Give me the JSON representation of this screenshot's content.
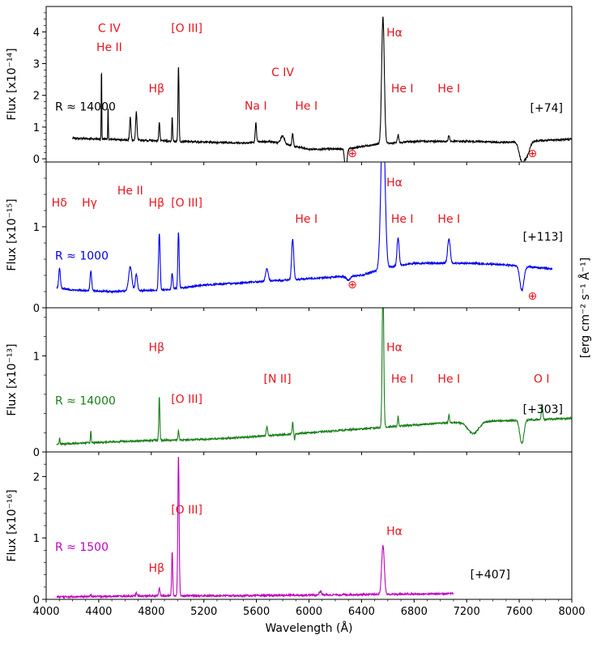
{
  "chart_data": {
    "type": "line",
    "xlabel": "Wavelength (Å)",
    "xlim": [
      4000,
      8000
    ],
    "xticks": [
      4000,
      4400,
      4800,
      5200,
      5600,
      6000,
      6400,
      6800,
      7200,
      7600,
      8000
    ],
    "ylabel_right": "[erg cm⁻² s⁻¹ Å⁻¹]",
    "annotation_color": "#e8141e",
    "panels": [
      {
        "ylabel": "Flux [x10⁻¹⁴]",
        "ylim": [
          -0.1,
          4.8
        ],
        "yticks": [
          0,
          1,
          2,
          3,
          4
        ],
        "color": "#000000",
        "resolution_label": "R ≈ 14000",
        "epoch_label": "[+74]",
        "continuum": [
          [
            4200,
            0.65
          ],
          [
            4600,
            0.6
          ],
          [
            5000,
            0.55
          ],
          [
            5500,
            0.5
          ],
          [
            5700,
            0.55
          ],
          [
            6000,
            0.3
          ],
          [
            6300,
            0.32
          ],
          [
            6500,
            0.45
          ],
          [
            6800,
            0.55
          ],
          [
            7200,
            0.55
          ],
          [
            7500,
            0.52
          ],
          [
            7800,
            0.58
          ],
          [
            8000,
            0.62
          ]
        ],
        "features": [
          [
            4421,
            2.3,
            2
          ],
          [
            4471,
            1.1,
            2
          ],
          [
            4640,
            0.7,
            5
          ],
          [
            4686,
            0.9,
            5
          ],
          [
            4861,
            0.6,
            4
          ],
          [
            4959,
            0.8,
            3
          ],
          [
            5007,
            2.4,
            4
          ],
          [
            5596,
            0.6,
            5
          ],
          [
            5800,
            0.25,
            15
          ],
          [
            5876,
            0.4,
            5
          ],
          [
            6563,
            4.0,
            10
          ],
          [
            6678,
            0.25,
            5
          ],
          [
            7065,
            0.2,
            5
          ]
        ],
        "telluric": [
          [
            6280,
            0.8,
            8
          ],
          [
            7620,
            0.6,
            20
          ],
          [
            7660,
            0.4,
            20
          ]
        ],
        "lines": [
          {
            "text": "C IV",
            "x": 4480,
            "y": 4.0
          },
          {
            "text": "He II",
            "x": 4480,
            "y": 3.4
          },
          {
            "text": "Hβ",
            "x": 4840,
            "y": 2.1
          },
          {
            "text": "[O III]",
            "x": 5070,
            "y": 4.0
          },
          {
            "text": "C IV",
            "x": 5800,
            "y": 2.6
          },
          {
            "text": "Na I",
            "x": 5595,
            "y": 1.55
          },
          {
            "text": "He I",
            "x": 5980,
            "y": 1.55
          },
          {
            "text": "Hα",
            "x": 6650,
            "y": 3.85
          },
          {
            "text": "He I",
            "x": 6710,
            "y": 2.1
          },
          {
            "text": "He I",
            "x": 7065,
            "y": 2.1
          },
          {
            "text": "⊕",
            "x": 6330,
            "y": 0.05
          },
          {
            "text": "⊕",
            "x": 7700,
            "y": 0.05
          }
        ]
      },
      {
        "ylabel": "Flux [x10⁻¹⁵]",
        "ylim": [
          0,
          1.8
        ],
        "yticks": [
          0,
          1
        ],
        "color": "#0000ee",
        "resolution_label": "R ≈ 1000",
        "epoch_label": "[+113]",
        "continuum": [
          [
            4080,
            0.25
          ],
          [
            4200,
            0.22
          ],
          [
            4500,
            0.2
          ],
          [
            4900,
            0.22
          ],
          [
            5200,
            0.28
          ],
          [
            5600,
            0.32
          ],
          [
            5900,
            0.35
          ],
          [
            6200,
            0.38
          ],
          [
            6400,
            0.4
          ],
          [
            6600,
            0.5
          ],
          [
            6800,
            0.55
          ],
          [
            7000,
            0.55
          ],
          [
            7200,
            0.55
          ],
          [
            7400,
            0.54
          ],
          [
            7580,
            0.52
          ],
          [
            7850,
            0.48
          ]
        ],
        "features": [
          [
            4102,
            0.25,
            6
          ],
          [
            4340,
            0.25,
            6
          ],
          [
            4640,
            0.3,
            12
          ],
          [
            4686,
            0.2,
            8
          ],
          [
            4861,
            0.7,
            6
          ],
          [
            5007,
            0.7,
            5
          ],
          [
            4959,
            0.2,
            5
          ],
          [
            5680,
            0.15,
            10
          ],
          [
            5876,
            0.5,
            8
          ],
          [
            6563,
            2.0,
            15
          ],
          [
            6678,
            0.35,
            8
          ],
          [
            7065,
            0.3,
            10
          ]
        ],
        "telluric": [
          [
            6300,
            0.05,
            15
          ],
          [
            7620,
            0.3,
            15
          ]
        ],
        "lines": [
          {
            "text": "Hδ",
            "x": 4100,
            "y": 1.25
          },
          {
            "text": "Hγ",
            "x": 4330,
            "y": 1.25
          },
          {
            "text": "He II",
            "x": 4640,
            "y": 1.4
          },
          {
            "text": "Hβ",
            "x": 4840,
            "y": 1.25
          },
          {
            "text": "[O III]",
            "x": 5070,
            "y": 1.25
          },
          {
            "text": "He I",
            "x": 5980,
            "y": 1.05
          },
          {
            "text": "Hα",
            "x": 6650,
            "y": 1.5
          },
          {
            "text": "He I",
            "x": 6710,
            "y": 1.05
          },
          {
            "text": "He I",
            "x": 7065,
            "y": 1.05
          },
          {
            "text": "⊕",
            "x": 6330,
            "y": 0.24
          },
          {
            "text": "⊕",
            "x": 7700,
            "y": 0.1
          }
        ]
      },
      {
        "ylabel": "Flux [x10⁻¹³]",
        "ylim": [
          0,
          1.5
        ],
        "yticks": [
          0,
          1
        ],
        "color": "#1a7f1a",
        "resolution_label": "R ≈ 14000",
        "epoch_label": "[+303]",
        "continuum": [
          [
            4080,
            0.08
          ],
          [
            4400,
            0.1
          ],
          [
            4800,
            0.12
          ],
          [
            5200,
            0.13
          ],
          [
            5600,
            0.16
          ],
          [
            6000,
            0.2
          ],
          [
            6400,
            0.24
          ],
          [
            6600,
            0.26
          ],
          [
            7000,
            0.3
          ],
          [
            7400,
            0.32
          ],
          [
            7600,
            0.33
          ],
          [
            8000,
            0.35
          ]
        ],
        "features": [
          [
            4102,
            0.06,
            3
          ],
          [
            4340,
            0.12,
            3
          ],
          [
            4861,
            0.45,
            4
          ],
          [
            5007,
            0.1,
            4
          ],
          [
            5680,
            0.1,
            5
          ],
          [
            5876,
            0.12,
            4
          ],
          [
            6563,
            1.5,
            6
          ],
          [
            6678,
            0.1,
            4
          ],
          [
            7065,
            0.08,
            4
          ],
          [
            7774,
            0.15,
            5
          ]
        ],
        "telluric": [
          [
            5890,
            0.06,
            3
          ],
          [
            7250,
            0.12,
            40
          ],
          [
            7620,
            0.25,
            15
          ]
        ],
        "lines": [
          {
            "text": "Hβ",
            "x": 4840,
            "y": 1.05
          },
          {
            "text": "[O III]",
            "x": 5070,
            "y": 0.51
          },
          {
            "text": "[N II]",
            "x": 5760,
            "y": 0.72
          },
          {
            "text": "Hα",
            "x": 6650,
            "y": 1.05
          },
          {
            "text": "He I",
            "x": 6710,
            "y": 0.72
          },
          {
            "text": "He I",
            "x": 7065,
            "y": 0.72
          },
          {
            "text": "O I",
            "x": 7770,
            "y": 0.72
          }
        ]
      },
      {
        "ylabel": "Flux [x10⁻¹⁶]",
        "ylim": [
          0,
          2.4
        ],
        "yticks": [
          0,
          1,
          2
        ],
        "color": "#c000c0",
        "resolution_label": "R ≈ 1500",
        "epoch_label": "[+407]",
        "continuum": [
          [
            4080,
            0.04
          ],
          [
            4500,
            0.05
          ],
          [
            5000,
            0.06
          ],
          [
            5500,
            0.06
          ],
          [
            6000,
            0.07
          ],
          [
            6500,
            0.08
          ],
          [
            7000,
            0.09
          ],
          [
            7100,
            0.1
          ]
        ],
        "features": [
          [
            4340,
            0.02,
            5
          ],
          [
            4686,
            0.05,
            5
          ],
          [
            4861,
            0.12,
            5
          ],
          [
            4959,
            0.72,
            4
          ],
          [
            5007,
            2.3,
            5
          ],
          [
            6087,
            0.06,
            8
          ],
          [
            6563,
            0.8,
            10
          ]
        ],
        "telluric": [],
        "lines": [
          {
            "text": "Hβ",
            "x": 4840,
            "y": 0.45
          },
          {
            "text": "[O III]",
            "x": 5070,
            "y": 1.4
          },
          {
            "text": "Hα",
            "x": 6650,
            "y": 1.05
          }
        ]
      }
    ]
  }
}
